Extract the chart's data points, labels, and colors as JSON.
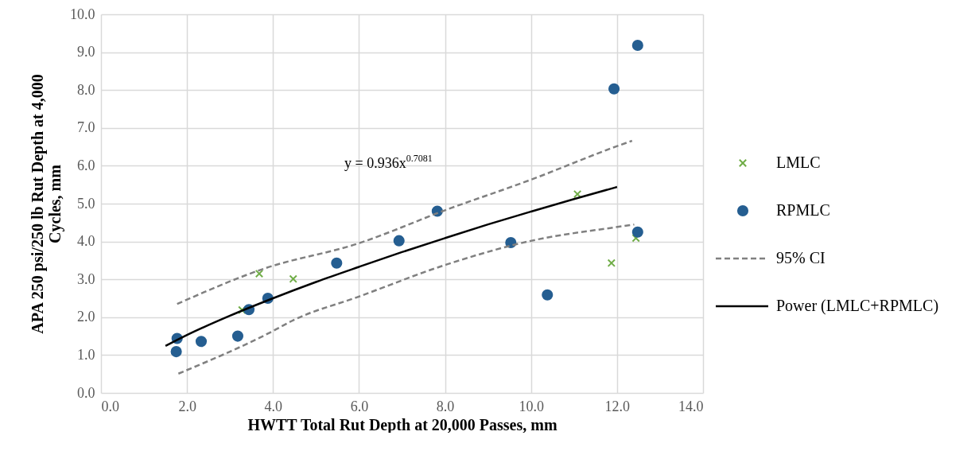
{
  "chart_data": {
    "type": "scatter",
    "xlabel": "HWTT Total  Rut Depth at 20,000 Passes, mm",
    "ylabel": "APA 250 psi/250 lb Rut Depth at 4,000 Cycles, mm",
    "xlim": [
      0,
      14
    ],
    "ylim": [
      0,
      10
    ],
    "xticks": [
      {
        "value": 0,
        "label": "0.0"
      },
      {
        "value": 2,
        "label": "2.0"
      },
      {
        "value": 4,
        "label": "4.0"
      },
      {
        "value": 6,
        "label": "6.0"
      },
      {
        "value": 8,
        "label": "8.0"
      },
      {
        "value": 10,
        "label": "10.0"
      },
      {
        "value": 12,
        "label": "12.0"
      },
      {
        "value": 14,
        "label": "14.0"
      }
    ],
    "yticks": [
      {
        "value": 0,
        "label": "0.0"
      },
      {
        "value": 1,
        "label": "1.0"
      },
      {
        "value": 2,
        "label": "2.0"
      },
      {
        "value": 3,
        "label": "3.0"
      },
      {
        "value": 4,
        "label": "4.0"
      },
      {
        "value": 5,
        "label": "5.0"
      },
      {
        "value": 6,
        "label": "6.0"
      },
      {
        "value": 7,
        "label": "7.0"
      },
      {
        "value": 8,
        "label": "8.0"
      },
      {
        "value": 9,
        "label": "9.0"
      },
      {
        "value": 10,
        "label": "10.0"
      }
    ],
    "grid": true,
    "legend": "right",
    "annotations": [
      "y = 0.936x$^{0.7081}$"
    ],
    "series": [
      {
        "name": "LMLC",
        "type": "scatter",
        "marker": "cross",
        "color": "#70ad47",
        "x": [
          3.28,
          3.68,
          4.47,
          11.08,
          11.87,
          12.44
        ],
        "values": [
          2.19,
          3.15,
          3.01,
          5.25,
          3.43,
          4.09
        ]
      },
      {
        "name": "RPMLC",
        "type": "scatter",
        "marker": "circle",
        "color": "#255e91",
        "x": [
          1.77,
          1.75,
          2.33,
          3.18,
          3.44,
          3.88,
          5.48,
          6.93,
          7.82,
          9.53,
          10.38,
          11.93,
          12.48,
          12.48
        ],
        "values": [
          1.44,
          1.09,
          1.36,
          1.5,
          2.2,
          2.5,
          3.43,
          4.02,
          4.8,
          3.97,
          2.59,
          8.03,
          9.18,
          4.25
        ]
      },
      {
        "name": "95% CI",
        "type": "line",
        "line_style": "dashed",
        "color": "#808080",
        "x": [
          1.77,
          3.81,
          5.96,
          8.06,
          9.97,
          11.98,
          12.35
        ],
        "values": [
          2.35,
          3.29,
          3.94,
          4.85,
          5.62,
          6.51,
          6.66
        ]
      },
      {
        "type": "line",
        "line_style": "dashed",
        "color": "#808080",
        "x": [
          1.8,
          3.99,
          4.47,
          5.96,
          8.03,
          9.97,
          11.98,
          12.4
        ],
        "values": [
          0.51,
          1.63,
          1.92,
          2.53,
          3.39,
          4.01,
          4.38,
          4.45
        ]
      },
      {
        "name": "Power (LMLC+RPMLC)",
        "type": "line",
        "line_style": "solid",
        "color": "#000000",
        "x": [
          1.5,
          2,
          3,
          4,
          5,
          6,
          7,
          8,
          9,
          10,
          11,
          12
        ],
        "values": [
          1.24,
          1.53,
          2.04,
          2.5,
          2.93,
          3.33,
          3.72,
          4.09,
          4.45,
          4.79,
          5.12,
          5.44
        ]
      }
    ]
  }
}
